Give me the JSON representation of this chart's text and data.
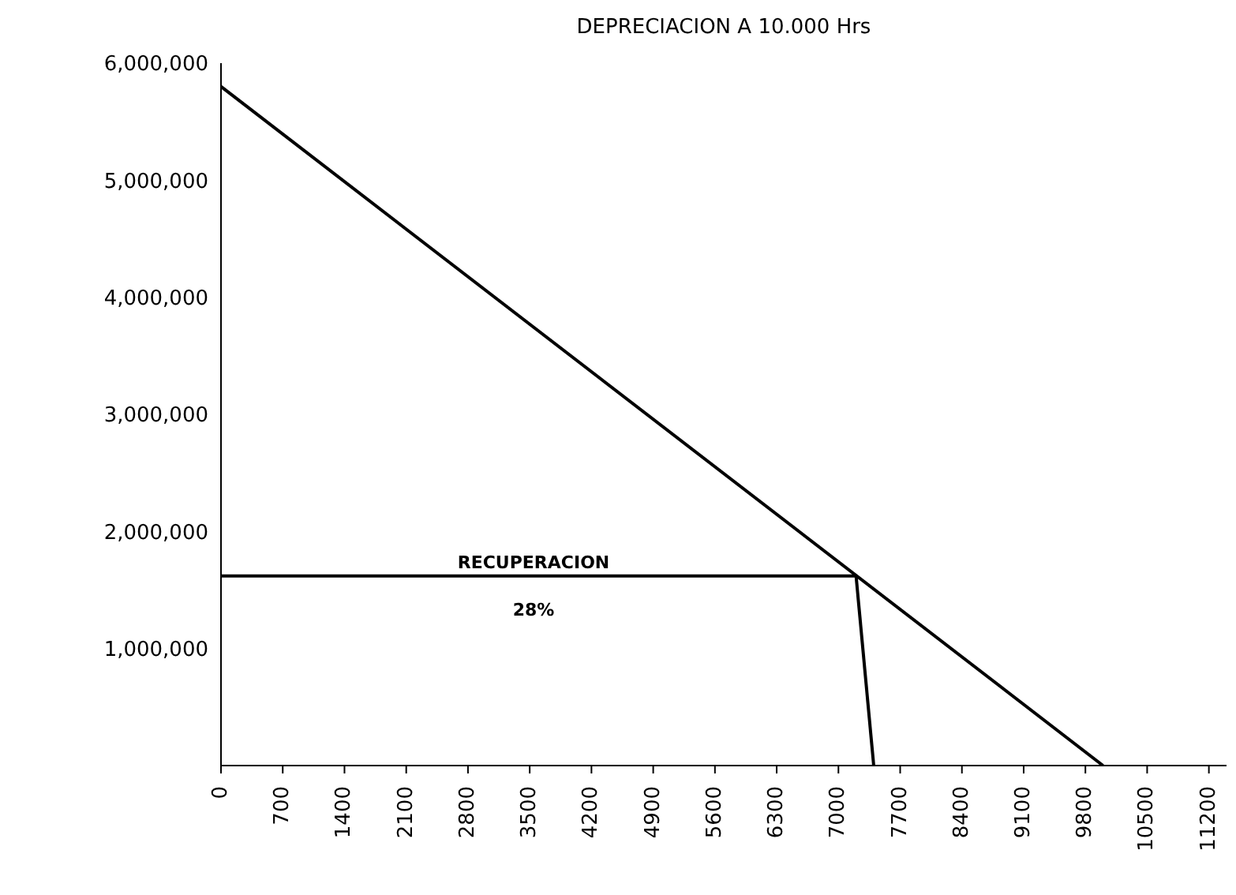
{
  "chart_data": {
    "type": "line",
    "title": "DEPRECIACION A 10.000 Hrs",
    "series": [
      {
        "color": "#000000",
        "x": [
          0,
          10000
        ],
        "values": [
          5800000,
          0
        ]
      },
      {
        "color": "#000000",
        "x": [
          0,
          7200
        ],
        "values": [
          1620000,
          1620000
        ]
      },
      {
        "color": "#000000",
        "x": [
          7200,
          7400
        ],
        "values": [
          1620000,
          0
        ]
      }
    ],
    "xlim": [
      0,
      11400
    ],
    "xticks": [
      0,
      700,
      1400,
      2100,
      2800,
      3500,
      4200,
      4900,
      5600,
      6300,
      7000,
      7700,
      8400,
      9100,
      9800,
      10500,
      11200
    ],
    "ylim": [
      0,
      6000000
    ],
    "yticks": [
      {
        "value": 1000000,
        "label": "1,000,000"
      },
      {
        "value": 2000000,
        "label": "2,000,000"
      },
      {
        "value": 3000000,
        "label": "3,000,000"
      },
      {
        "value": 4000000,
        "label": "4,000,000"
      },
      {
        "value": 5000000,
        "label": "5,000,000"
      },
      {
        "value": 6000000,
        "label": "6,000,000"
      }
    ],
    "annotations": [
      "RECUPERACION",
      "28%"
    ],
    "grid": false,
    "marker": "none",
    "line_style": "solid"
  }
}
